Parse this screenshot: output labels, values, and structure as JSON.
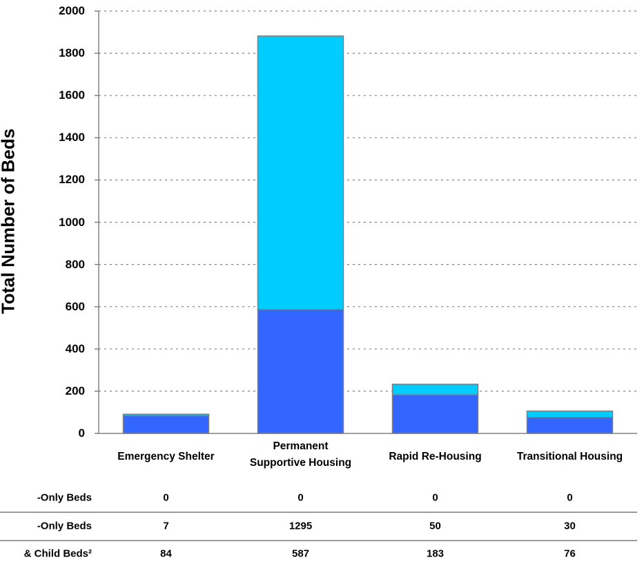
{
  "chart_data": {
    "type": "bar",
    "stacked": true,
    "ylabel": "Total Number of Beds",
    "ylim": [
      0,
      2000
    ],
    "yticks": [
      0,
      200,
      400,
      600,
      800,
      1000,
      1200,
      1400,
      1600,
      1800,
      2000
    ],
    "grid": true,
    "categories": [
      "Emergency Shelter",
      "Permanent Supportive Housing",
      "Rapid Re-Housing",
      "Transitional Housing"
    ],
    "category_lines": [
      [
        "Emergency Shelter"
      ],
      [
        "Permanent",
        "Supportive Housing"
      ],
      [
        "Rapid Re-Housing"
      ],
      [
        "Transitional Housing"
      ]
    ],
    "series": [
      {
        "name": "-Only Beds",
        "values": [
          0,
          0,
          0,
          0
        ],
        "color": "#00b0f0"
      },
      {
        "name": "-Only Beds",
        "values": [
          7,
          1295,
          50,
          30
        ],
        "color": "#00ccff"
      },
      {
        "name": "& Child Beds²",
        "values": [
          84,
          587,
          183,
          76
        ],
        "color": "#3366ff"
      }
    ],
    "table": {
      "row_labels": [
        "-Only Beds",
        "-Only Beds",
        "& Child Beds²"
      ],
      "rows": [
        [
          "0",
          "0",
          "0",
          "0"
        ],
        [
          "7",
          "1295",
          "50",
          "30"
        ],
        [
          "84",
          "587",
          "183",
          "76"
        ]
      ]
    }
  }
}
